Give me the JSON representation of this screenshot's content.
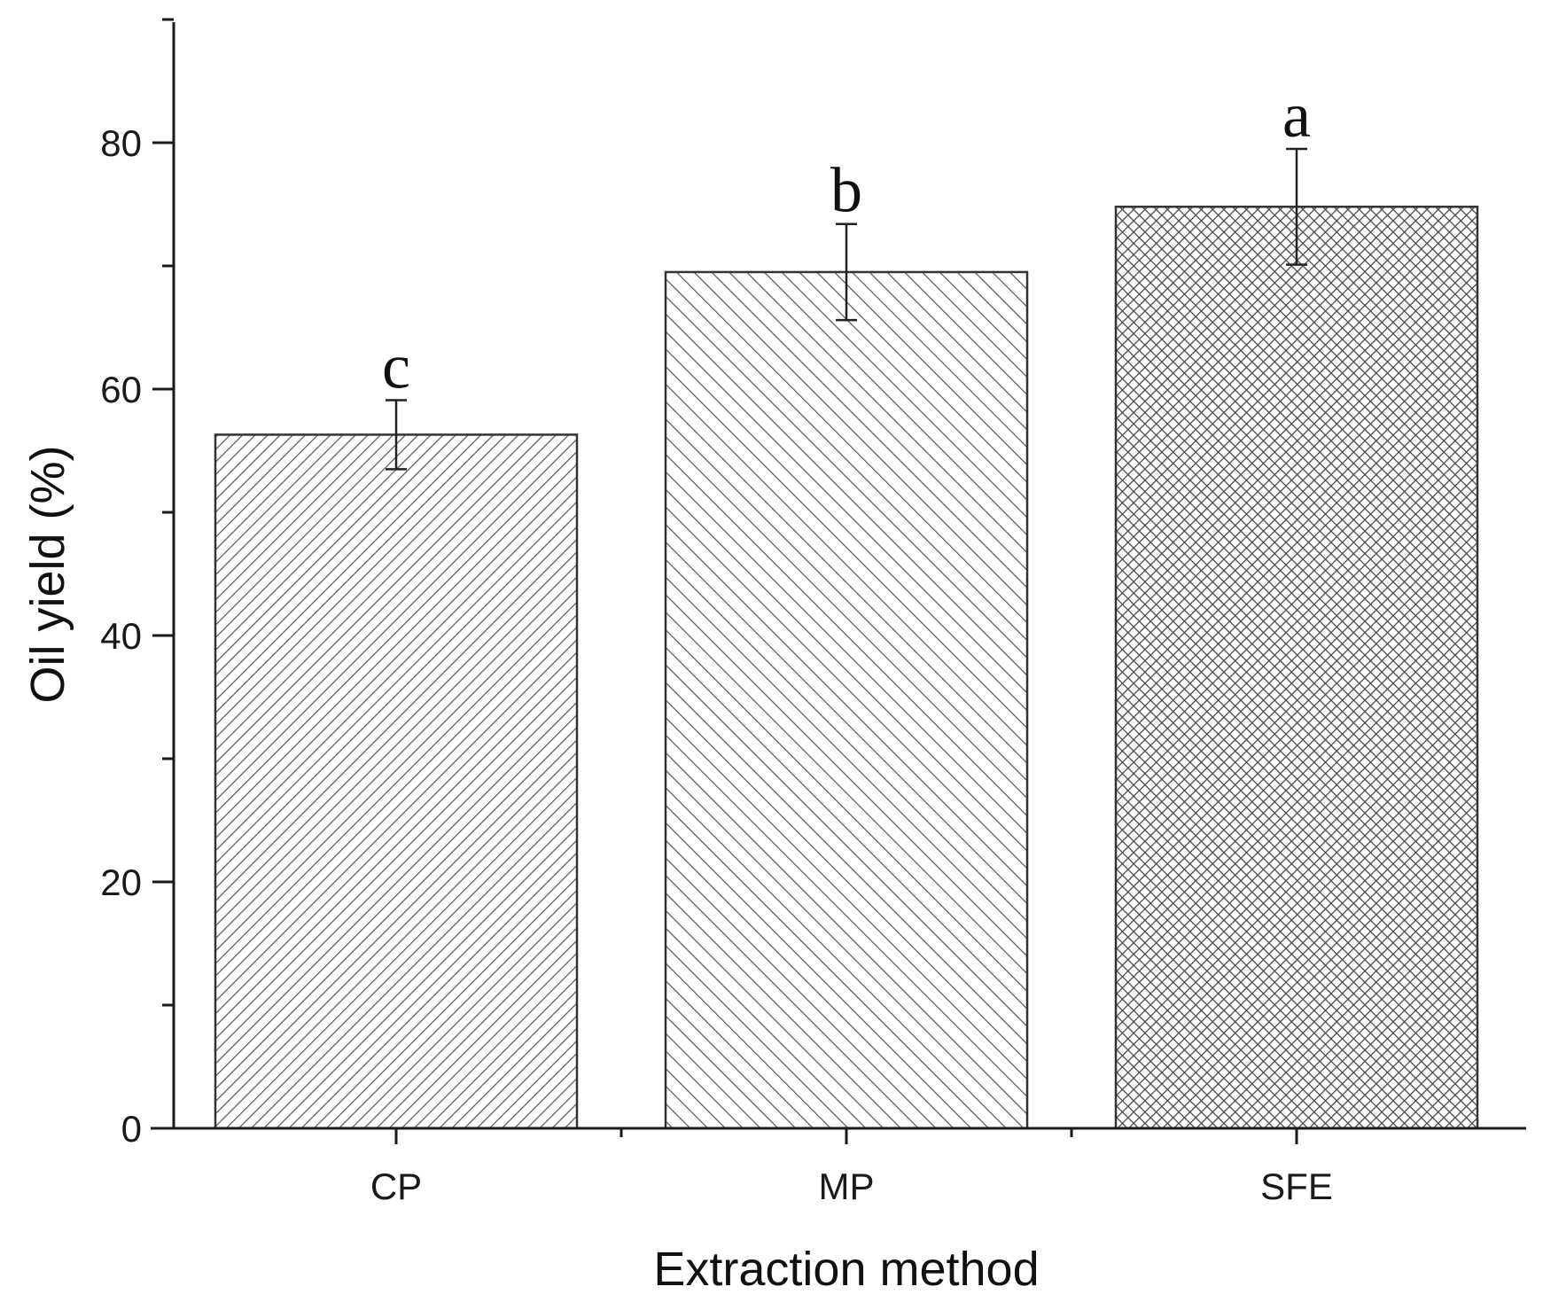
{
  "chart_data": {
    "type": "bar",
    "title": "",
    "xlabel": "Extraction method",
    "ylabel": "Oil yield (%)",
    "categories": [
      "CP",
      "MP",
      "SFE"
    ],
    "values": [
      56.3,
      69.5,
      74.8
    ],
    "error": [
      2.8,
      3.9,
      4.7
    ],
    "significance_letters": [
      "c",
      "b",
      "a"
    ],
    "patterns": [
      "fine-diagonal-hatch",
      "back-diagonal-hatch",
      "crosshatch"
    ],
    "ylim": [
      0,
      90
    ],
    "y_ticks": [
      0,
      20,
      40,
      60,
      80
    ],
    "y_tick_labels": [
      "0",
      "20",
      "40",
      "60",
      "80"
    ],
    "y_minor_tick_step": 10,
    "grid": false,
    "colors": {
      "axis": "#1a1a1a",
      "bar_edge": "#333333",
      "pattern": "#555555",
      "background": "#ffffff"
    }
  }
}
